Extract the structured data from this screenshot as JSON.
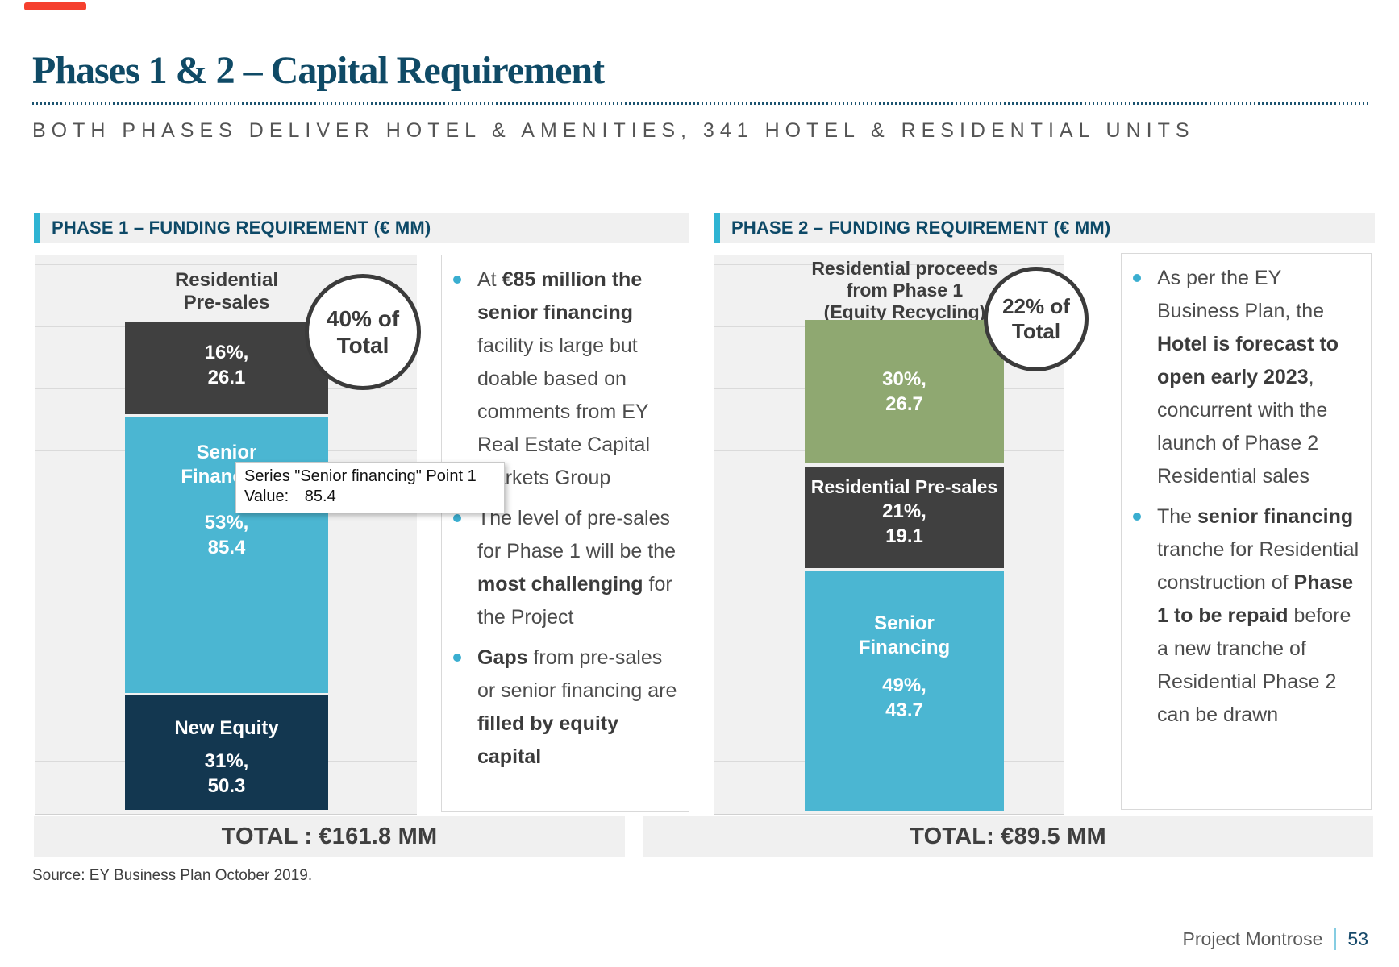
{
  "header": {
    "title": "Phases 1 & 2 – Capital Requirement",
    "subtitle": "BOTH PHASES DELIVER HOTEL & AMENITIES, 341 HOTEL & RESIDENTIAL UNITS"
  },
  "tooltip": {
    "line1": "Series \"Senior financing\" Point 1",
    "value_label": "Value:",
    "value": "85.4"
  },
  "phase1": {
    "panel_title": "PHASE 1 – FUNDING REQUIREMENT (€ MM)",
    "accent_color": "#2fb4d3",
    "badge": [
      "40% of",
      "Total"
    ],
    "column_label": [
      "Residential",
      "Pre-sales"
    ],
    "segments": {
      "presales": {
        "pct": "16%,",
        "value": "26.1",
        "color": "#404040"
      },
      "senior": {
        "name1": "Senior",
        "name2": "Financing",
        "pct": "53%,",
        "value": "85.4",
        "color": "#4bb6d2"
      },
      "equity": {
        "name": "New Equity",
        "pct": "31%,",
        "value": "50.3",
        "color": "#133750"
      }
    },
    "total": "TOTAL : €161.8 MM",
    "bullets": [
      {
        "runs": [
          {
            "t": "At "
          },
          {
            "t": "€85 million the senior financing",
            "b": true
          },
          {
            "t": " facility is large but doable based on comments from EY Real Estate Capital Markets Group"
          }
        ]
      },
      {
        "runs": [
          {
            "t": "The level of pre-sales for Phase 1 will be the "
          },
          {
            "t": "most challenging",
            "b": true
          },
          {
            "t": " for the Project"
          }
        ]
      },
      {
        "runs": [
          {
            "t": "Gaps",
            "b": true
          },
          {
            "t": " from pre-sales or senior financing are "
          },
          {
            "t": "filled by equity capital",
            "b": true
          }
        ]
      }
    ]
  },
  "phase2": {
    "panel_title": "PHASE 2 – FUNDING REQUIREMENT (€ MM)",
    "accent_color": "#2fb4d3",
    "badge": [
      "22% of",
      "Total"
    ],
    "column_label": [
      "Residential proceeds",
      "from Phase 1",
      "(Equity Recycling)"
    ],
    "segments": {
      "recycling": {
        "pct": "30%,",
        "value": "26.7",
        "color": "#8fa871"
      },
      "presales": {
        "name": "Residential Pre-sales",
        "pct": "21%,",
        "value": "19.1",
        "color": "#404040"
      },
      "senior": {
        "name1": "Senior",
        "name2": "Financing",
        "pct": "49%,",
        "value": "43.7",
        "color": "#4bb6d2"
      }
    },
    "total": "TOTAL: €89.5 MM",
    "bullets": [
      {
        "runs": [
          {
            "t": "As per the EY Business Plan, the "
          },
          {
            "t": "Hotel is forecast to open early 2023",
            "b": true
          },
          {
            "t": ", concurrent with the launch of Phase 2 Residential sales"
          }
        ]
      },
      {
        "runs": [
          {
            "t": "The "
          },
          {
            "t": "senior financing",
            "b": true
          },
          {
            "t": " tranche for Residential construction of "
          },
          {
            "t": "Phase 1 to be repaid",
            "b": true
          },
          {
            "t": " before a new tranche of Residential Phase 2 can be drawn"
          }
        ]
      }
    ]
  },
  "footer": {
    "source": "Source: EY Business Plan October 2019.",
    "project": "Project Montrose",
    "page": "53"
  },
  "chart_data": [
    {
      "type": "bar",
      "subtype": "stacked-column",
      "title": "PHASE 1 – FUNDING REQUIREMENT (€ MM)",
      "categories": [
        "Phase 1"
      ],
      "series": [
        {
          "name": "New Equity",
          "values": [
            50.3
          ],
          "pct": "31%",
          "color": "#133750"
        },
        {
          "name": "Senior financing",
          "values": [
            85.4
          ],
          "pct": "53%",
          "color": "#4bb6d2"
        },
        {
          "name": "Residential Pre-sales",
          "values": [
            26.1
          ],
          "pct": "16%",
          "color": "#404040"
        }
      ],
      "total": 161.8,
      "annotation": "40% of Total",
      "grid": true,
      "legend": "none"
    },
    {
      "type": "bar",
      "subtype": "stacked-column",
      "title": "PHASE 2 – FUNDING REQUIREMENT (€ MM)",
      "categories": [
        "Phase 2"
      ],
      "series": [
        {
          "name": "Senior Financing",
          "values": [
            43.7
          ],
          "pct": "49%",
          "color": "#4bb6d2"
        },
        {
          "name": "Residential Pre-sales",
          "values": [
            19.1
          ],
          "pct": "21%",
          "color": "#404040"
        },
        {
          "name": "Residential proceeds from Phase 1 (Equity Recycling)",
          "values": [
            26.7
          ],
          "pct": "30%",
          "color": "#8fa871"
        }
      ],
      "total": 89.5,
      "annotation": "22% of Total",
      "grid": true,
      "legend": "none"
    }
  ]
}
